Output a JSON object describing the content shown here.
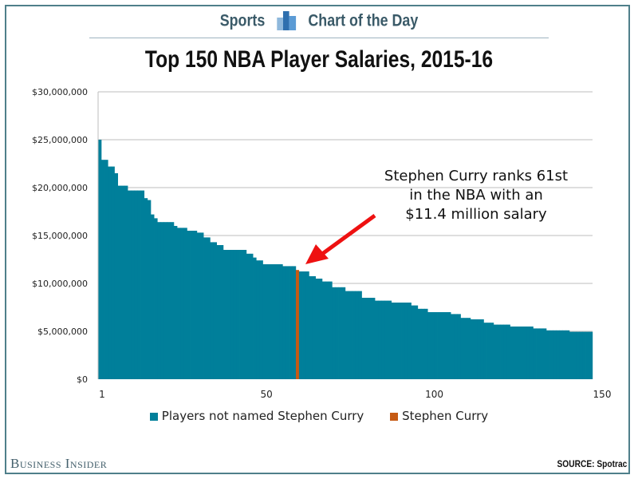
{
  "header": {
    "section": "Sports",
    "label": "Chart of the Day"
  },
  "branding": {
    "publisher": "Business Insider",
    "source": "SOURCE: Spotrac"
  },
  "colors": {
    "players": "#007f9a",
    "curry": "#c65a14",
    "annotation_arrow": "#ee1111",
    "frame": "#4f7f8a"
  },
  "chart_data": {
    "type": "bar",
    "title": "Top 150 NBA Player Salaries, 2015-16",
    "xlabel": "",
    "ylabel": "",
    "xlim": [
      1,
      150
    ],
    "ylim": [
      0,
      30000000
    ],
    "x_ticks": [
      "1",
      "50",
      "100",
      "150"
    ],
    "y_ticks": [
      "$0",
      "$5,000,000",
      "$10,000,000",
      "$15,000,000",
      "$20,000,000",
      "$25,000,000",
      "$30,000,000"
    ],
    "grid": true,
    "legend_position": "bottom",
    "series": [
      {
        "name": "Players not named Stephen Curry",
        "color": "#007f9a"
      },
      {
        "name": "Stephen Curry",
        "color": "#c65a14",
        "rank": 61
      }
    ],
    "annotation": {
      "lines": [
        "Stephen Curry ranks 61st",
        "in the NBA with an",
        "$11.4 million salary"
      ],
      "points_to_rank": 61
    },
    "values_millions": [
      25.0,
      22.9,
      22.9,
      22.2,
      22.2,
      21.5,
      20.2,
      20.2,
      20.2,
      19.7,
      19.7,
      19.7,
      19.7,
      19.7,
      18.9,
      18.7,
      17.2,
      16.8,
      16.4,
      16.4,
      16.4,
      16.4,
      16.4,
      16.0,
      15.8,
      15.8,
      15.8,
      15.5,
      15.5,
      15.5,
      15.3,
      15.3,
      14.8,
      14.8,
      14.3,
      14.3,
      14.0,
      14.0,
      13.5,
      13.5,
      13.5,
      13.5,
      13.5,
      13.5,
      13.5,
      13.1,
      13.1,
      12.7,
      12.4,
      12.4,
      12.0,
      12.0,
      12.0,
      12.0,
      12.0,
      12.0,
      11.8,
      11.8,
      11.8,
      11.8,
      11.4,
      11.25,
      11.25,
      11.25,
      10.75,
      10.75,
      10.5,
      10.5,
      10.2,
      10.2,
      10.2,
      9.6,
      9.6,
      9.6,
      9.6,
      9.2,
      9.2,
      9.2,
      9.2,
      9.2,
      8.5,
      8.5,
      8.5,
      8.5,
      8.2,
      8.2,
      8.2,
      8.2,
      8.2,
      8.0,
      8.0,
      8.0,
      8.0,
      8.0,
      8.0,
      7.7,
      7.7,
      7.35,
      7.35,
      7.35,
      7.0,
      7.0,
      7.0,
      7.0,
      7.0,
      7.0,
      7.0,
      6.8,
      6.8,
      6.8,
      6.4,
      6.4,
      6.4,
      6.25,
      6.25,
      6.25,
      6.25,
      5.9,
      5.9,
      5.9,
      5.7,
      5.7,
      5.7,
      5.7,
      5.7,
      5.5,
      5.5,
      5.5,
      5.5,
      5.5,
      5.5,
      5.5,
      5.3,
      5.3,
      5.3,
      5.3,
      5.1,
      5.1,
      5.1,
      5.1,
      5.1,
      5.1,
      5.1,
      4.95,
      4.95,
      4.95,
      4.95,
      4.95,
      4.95,
      4.95
    ]
  }
}
